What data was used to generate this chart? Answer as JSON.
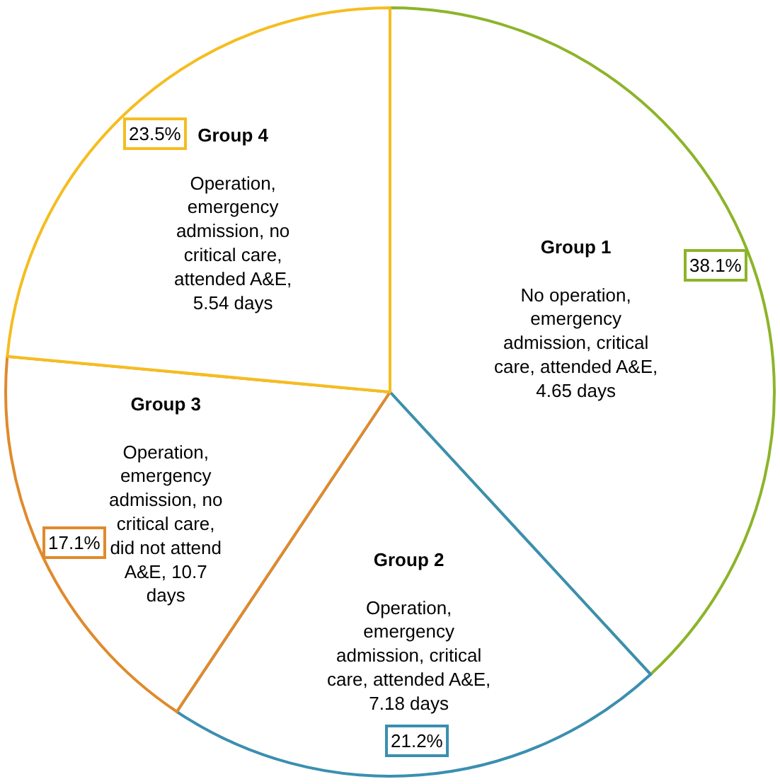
{
  "chart_data": {
    "type": "pie",
    "categories": [
      "Group 1",
      "Group 2",
      "Group 3",
      "Group 4"
    ],
    "values": [
      38.1,
      21.2,
      17.1,
      23.5
    ],
    "value_labels": [
      "38.1%",
      "21.2%",
      "17.1%",
      "23.5%"
    ],
    "colors": [
      "#8db42a",
      "#3a8fb0",
      "#e08a2c",
      "#f5bd20"
    ],
    "annotations": [
      "No operation,\nemergency\nadmission, critical\ncare, attended A&E,\n4.65 days",
      "Operation,\nemergency\nadmission, critical\ncare, attended A&E,\n7.18 days",
      "Operation,\nemergency\nadmission, no\ncritical care,\ndid not attend\nA&E, 10.7\ndays",
      "Operation,\nemergency\nadmission, no\ncritical care,\nattended A&E,\n5.54 days"
    ]
  }
}
